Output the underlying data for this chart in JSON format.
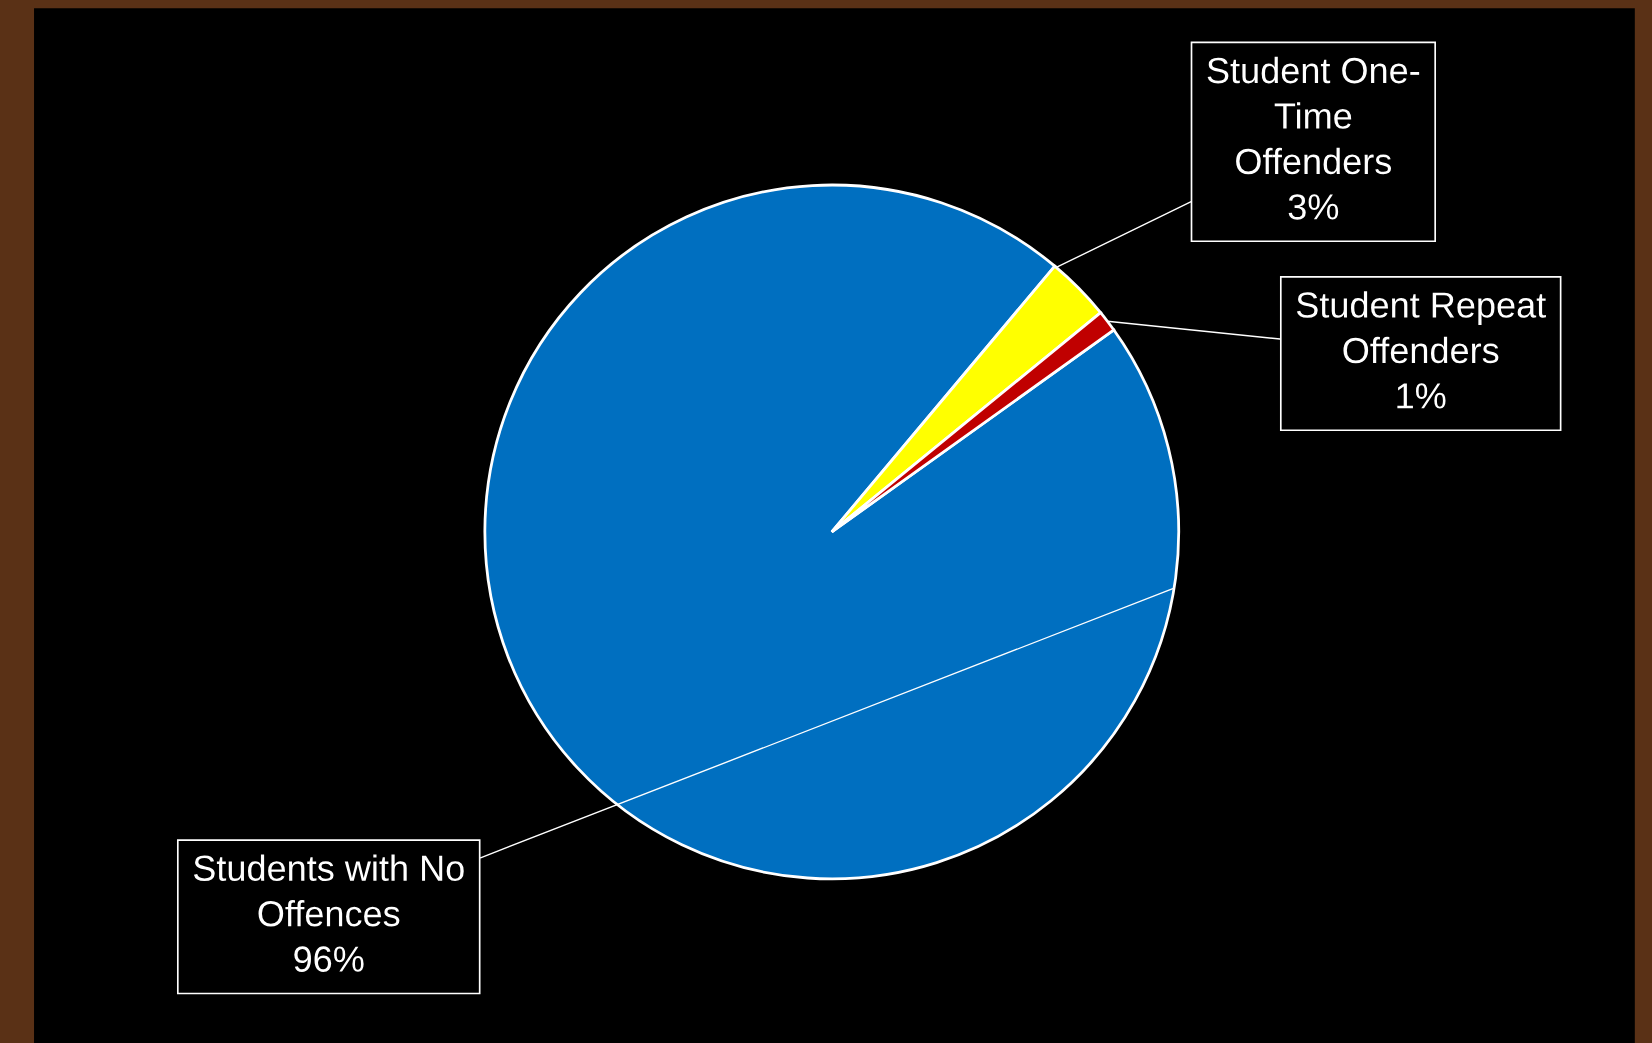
{
  "chart_data": {
    "type": "pie",
    "categories": [
      "Students with No Offences",
      "Student One-Time Offenders",
      "Student Repeat Offenders"
    ],
    "values": [
      96,
      3,
      1
    ],
    "value_labels": [
      "96%",
      "3%",
      "1%"
    ],
    "colors": [
      "#006fc0",
      "#ffff00",
      "#c00000"
    ]
  }
}
